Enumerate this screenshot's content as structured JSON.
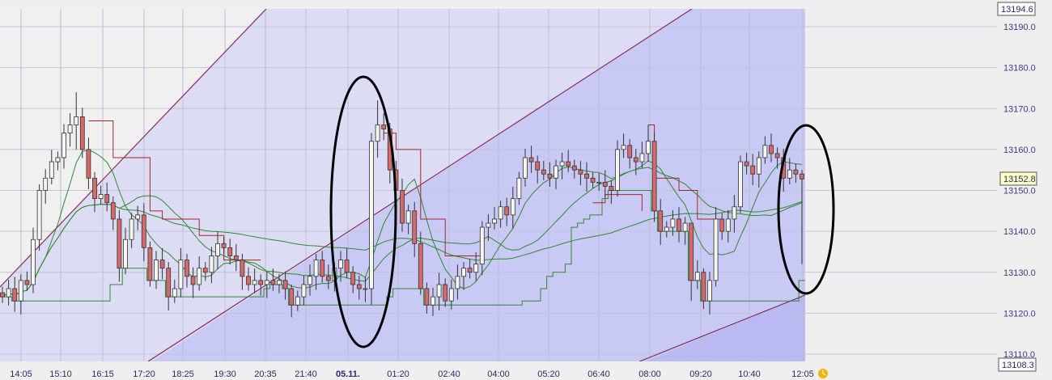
{
  "chart_data": {
    "type": "candlestick",
    "title": "",
    "xlabel": "",
    "ylabel": "",
    "ylim": [
      13108.3,
      13194.6
    ],
    "grid": true,
    "colors": {
      "up": "#f6f6ee",
      "down": "#d46a6a",
      "ma": "#2e8b2e",
      "stop": "#a02828",
      "channel": "#8a2a5a",
      "bg_outside": "#f0f0f0",
      "band1": "#dcdcf4",
      "band2": "#c9c9f6",
      "band3": "#b9b9f4"
    },
    "y_ticks": [
      "13190.0",
      "13180.0",
      "13170.0",
      "13160.0",
      "13150.0",
      "13140.0",
      "13130.0",
      "13120.0",
      "13110.0"
    ],
    "y_tick_values": [
      13190,
      13180,
      13170,
      13160,
      13150,
      13140,
      13130,
      13120,
      13110
    ],
    "price_labels": {
      "top": "13194.6",
      "last": "13152.8",
      "bottom": "13108.3"
    },
    "x_ticks": [
      "14:05",
      "15:10",
      "16:15",
      "17:20",
      "18:25",
      "19:30",
      "20:35",
      "21:40",
      "05.11.",
      "01:20",
      "02:40",
      "04:00",
      "05:20",
      "06:40",
      "08:00",
      "09:20",
      "10:40",
      "12:05"
    ],
    "x_tick_bold": "05.11.",
    "close": [
      13124,
      13126,
      13123,
      13128,
      13127,
      13138,
      13150,
      13153,
      13157,
      13158,
      13164,
      13166,
      13168,
      13160,
      13153,
      13148,
      13149,
      13147,
      13143,
      13131,
      13138,
      13143,
      13144,
      13136,
      13128,
      13133,
      13131,
      13124,
      13126,
      13133,
      13129,
      13127,
      13131,
      13130,
      13134,
      13137,
      13136,
      13134,
      13133,
      13129,
      13127,
      13128,
      13127,
      13128,
      13127,
      13128,
      13126,
      13122,
      13124,
      13127,
      13129,
      13133,
      13129,
      13128,
      13131,
      13133,
      13130,
      13127,
      13126,
      13126,
      13162,
      13166,
      13165,
      13155,
      13150,
      13142,
      13145,
      13137,
      13126,
      13122,
      13124,
      13127,
      13123,
      13126,
      13129,
      13131,
      13130,
      13132,
      13141,
      13142,
      13143,
      13146,
      13144,
      13148,
      13153,
      13158,
      13157,
      13155,
      13154,
      13153,
      13156,
      13157,
      13156,
      13155,
      13154,
      13153,
      13152,
      13152,
      13151,
      13150,
      13160,
      13161,
      13158,
      13157,
      13159,
      13162,
      13145,
      13140,
      13141,
      13143,
      13140,
      13142,
      13128,
      13130,
      13123,
      13128,
      13143,
      13140,
      13143,
      13146,
      13157,
      13156,
      13154,
      13158,
      13161,
      13159,
      13158,
      13153,
      13155,
      13154,
      13152.8
    ],
    "first_open": 13125,
    "wick_extremes": [
      {
        "index": 12,
        "high": 13174,
        "low": 13160
      },
      {
        "index": 47,
        "high": 13127,
        "low": 13119
      },
      {
        "index": 60,
        "high": 13164,
        "low": 13122
      },
      {
        "index": 61,
        "high": 13172,
        "low": 13158
      },
      {
        "index": 105,
        "high": 13166,
        "low": 13157
      },
      {
        "index": 112,
        "high": 13142,
        "low": 13123
      },
      {
        "index": 114,
        "high": 13131,
        "low": 13121
      },
      {
        "index": 130,
        "high": 13155,
        "low": 13132
      }
    ],
    "stop_line": [
      [
        [
          14,
          13167
        ],
        [
          18,
          13158
        ],
        [
          22,
          13158
        ],
        [
          24,
          13145
        ],
        [
          26,
          13143
        ],
        [
          30,
          13143
        ],
        [
          32,
          13139
        ],
        [
          36,
          13133
        ],
        [
          42,
          13133
        ]
      ],
      [
        [
          62,
          13164
        ],
        [
          64,
          13160
        ],
        [
          68,
          13143
        ],
        [
          72,
          13134
        ],
        [
          78,
          13134
        ]
      ],
      [
        [
          96,
          13147
        ],
        [
          98,
          13149
        ],
        [
          104,
          13145
        ]
      ],
      [
        [
          105,
          13166
        ],
        [
          106,
          13153
        ],
        [
          110,
          13150
        ],
        [
          113,
          13143
        ],
        [
          117,
          13140
        ]
      ]
    ],
    "channel_lines": [
      [
        [
          -0.4,
          13126.4
        ],
        [
          42.9,
          13194.7
        ]
      ],
      [
        [
          23.7,
          13107.6
        ],
        [
          112.1,
          13194.5
        ]
      ],
      [
        [
          103.6,
          13107.6
        ],
        [
          130.5,
          13124.4
        ]
      ]
    ],
    "moving_average_periods": [
      8,
      20,
      60
    ]
  }
}
